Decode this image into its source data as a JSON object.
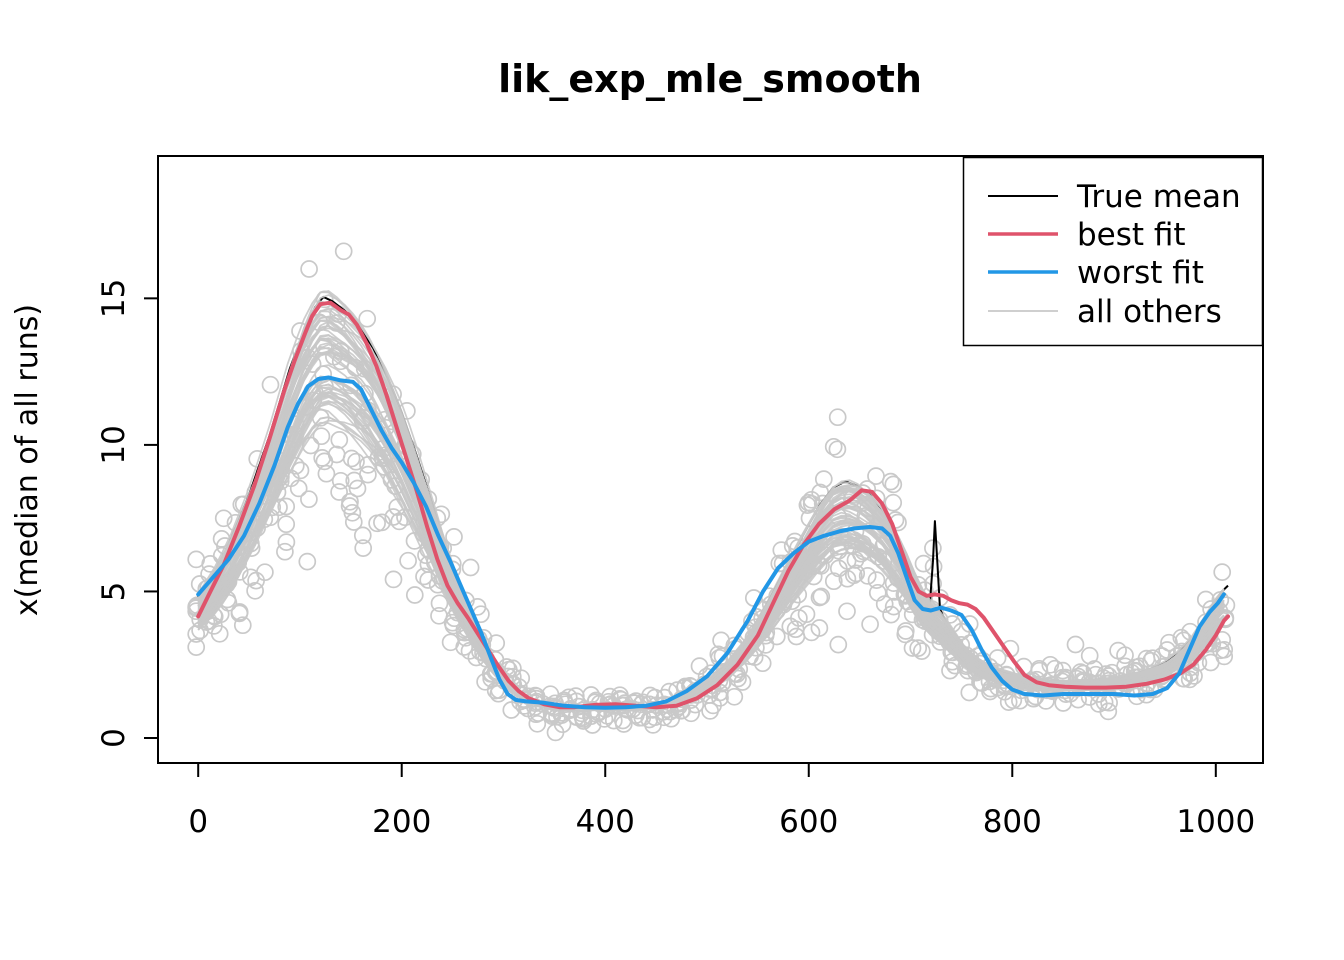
{
  "figure": {
    "background": "#FFFFFF"
  },
  "legend": {
    "position": "topright",
    "border_color": "#000000",
    "fill": "#FFFFFF"
  },
  "chart_data": {
    "type": "line",
    "title": "lik_exp_mle_smooth",
    "xlabel": "",
    "ylabel": "x(median of all runs)",
    "xlim": [
      -39,
      1046
    ],
    "ylim": [
      -0.85,
      19.85
    ],
    "x_ticks": [
      0,
      200,
      400,
      600,
      800,
      1000
    ],
    "y_ticks": [
      0,
      5,
      10,
      15
    ],
    "grid": false,
    "legend_position": "topright",
    "series": [
      {
        "name": "True mean",
        "color": "#000000",
        "width": 2,
        "points": [
          [
            0,
            4.8
          ],
          [
            15,
            5.6
          ],
          [
            30,
            6.6
          ],
          [
            50,
            8.3
          ],
          [
            70,
            10.3
          ],
          [
            90,
            12.6
          ],
          [
            105,
            14.0
          ],
          [
            115,
            14.7
          ],
          [
            123,
            15.05
          ],
          [
            132,
            14.9
          ],
          [
            145,
            14.55
          ],
          [
            158,
            14.05
          ],
          [
            172,
            13.3
          ],
          [
            186,
            12.3
          ],
          [
            200,
            11.1
          ],
          [
            214,
            9.7
          ],
          [
            228,
            8.2
          ],
          [
            242,
            6.7
          ],
          [
            256,
            5.3
          ],
          [
            270,
            4.1
          ],
          [
            284,
            3.1
          ],
          [
            298,
            2.3
          ],
          [
            312,
            1.7
          ],
          [
            326,
            1.3
          ],
          [
            342,
            1.1
          ],
          [
            360,
            1.0
          ],
          [
            380,
            0.98
          ],
          [
            400,
            0.98
          ],
          [
            420,
            1.0
          ],
          [
            440,
            1.05
          ],
          [
            460,
            1.18
          ],
          [
            480,
            1.45
          ],
          [
            500,
            1.9
          ],
          [
            520,
            2.55
          ],
          [
            540,
            3.45
          ],
          [
            558,
            4.5
          ],
          [
            576,
            5.7
          ],
          [
            594,
            6.9
          ],
          [
            610,
            7.9
          ],
          [
            624,
            8.55
          ],
          [
            636,
            8.75
          ],
          [
            648,
            8.6
          ],
          [
            660,
            8.3
          ],
          [
            672,
            7.8
          ],
          [
            684,
            7.1
          ],
          [
            694,
            6.4
          ],
          [
            702,
            5.7
          ],
          [
            710,
            5.1
          ],
          [
            716,
            4.7
          ],
          [
            719,
            4.6
          ],
          [
            722,
            6.0
          ],
          [
            724,
            7.4
          ],
          [
            726,
            6.2
          ],
          [
            729,
            4.4
          ],
          [
            734,
            4.0
          ],
          [
            742,
            3.6
          ],
          [
            752,
            3.1
          ],
          [
            764,
            2.7
          ],
          [
            778,
            2.4
          ],
          [
            794,
            2.2
          ],
          [
            812,
            2.05
          ],
          [
            832,
            1.95
          ],
          [
            852,
            1.92
          ],
          [
            872,
            1.95
          ],
          [
            892,
            2.0
          ],
          [
            912,
            2.1
          ],
          [
            932,
            2.3
          ],
          [
            950,
            2.55
          ],
          [
            964,
            2.9
          ],
          [
            977,
            3.4
          ],
          [
            988,
            4.0
          ],
          [
            998,
            4.6
          ],
          [
            1006,
            5.0
          ],
          [
            1012,
            5.2
          ]
        ]
      },
      {
        "name": "best fit",
        "color": "#DF536B",
        "width": 4,
        "points": [
          [
            0,
            4.15
          ],
          [
            12,
            5.0
          ],
          [
            25,
            5.9
          ],
          [
            40,
            7.2
          ],
          [
            55,
            8.6
          ],
          [
            70,
            10.2
          ],
          [
            85,
            11.9
          ],
          [
            95,
            12.9
          ],
          [
            105,
            13.8
          ],
          [
            112,
            14.4
          ],
          [
            120,
            14.8
          ],
          [
            130,
            14.85
          ],
          [
            140,
            14.6
          ],
          [
            148,
            14.45
          ],
          [
            156,
            14.1
          ],
          [
            165,
            13.5
          ],
          [
            175,
            12.7
          ],
          [
            185,
            11.7
          ],
          [
            195,
            10.6
          ],
          [
            205,
            9.5
          ],
          [
            215,
            8.4
          ],
          [
            225,
            7.2
          ],
          [
            235,
            6.1
          ],
          [
            245,
            5.2
          ],
          [
            255,
            4.6
          ],
          [
            265,
            4.1
          ],
          [
            275,
            3.55
          ],
          [
            285,
            3.0
          ],
          [
            295,
            2.45
          ],
          [
            305,
            1.95
          ],
          [
            315,
            1.6
          ],
          [
            325,
            1.35
          ],
          [
            340,
            1.15
          ],
          [
            355,
            1.05
          ],
          [
            370,
            1.05
          ],
          [
            390,
            1.13
          ],
          [
            410,
            1.15
          ],
          [
            430,
            1.1
          ],
          [
            450,
            1.05
          ],
          [
            470,
            1.1
          ],
          [
            490,
            1.35
          ],
          [
            510,
            1.8
          ],
          [
            530,
            2.5
          ],
          [
            550,
            3.5
          ],
          [
            565,
            4.6
          ],
          [
            580,
            5.7
          ],
          [
            595,
            6.6
          ],
          [
            610,
            7.3
          ],
          [
            625,
            7.8
          ],
          [
            640,
            8.1
          ],
          [
            652,
            8.45
          ],
          [
            662,
            8.4
          ],
          [
            672,
            8.0
          ],
          [
            682,
            7.3
          ],
          [
            692,
            6.3
          ],
          [
            700,
            5.5
          ],
          [
            708,
            5.0
          ],
          [
            716,
            4.85
          ],
          [
            724,
            4.9
          ],
          [
            732,
            4.85
          ],
          [
            740,
            4.7
          ],
          [
            748,
            4.6
          ],
          [
            756,
            4.55
          ],
          [
            764,
            4.4
          ],
          [
            772,
            4.1
          ],
          [
            782,
            3.6
          ],
          [
            792,
            3.1
          ],
          [
            802,
            2.6
          ],
          [
            812,
            2.15
          ],
          [
            824,
            1.9
          ],
          [
            836,
            1.8
          ],
          [
            852,
            1.75
          ],
          [
            872,
            1.72
          ],
          [
            892,
            1.72
          ],
          [
            912,
            1.75
          ],
          [
            932,
            1.85
          ],
          [
            950,
            2.0
          ],
          [
            965,
            2.2
          ],
          [
            978,
            2.5
          ],
          [
            990,
            3.0
          ],
          [
            1000,
            3.5
          ],
          [
            1008,
            4.0
          ],
          [
            1012,
            4.15
          ]
        ]
      },
      {
        "name": "worst fit",
        "color": "#2297E6",
        "width": 4,
        "points": [
          [
            0,
            4.9
          ],
          [
            15,
            5.5
          ],
          [
            30,
            6.1
          ],
          [
            45,
            6.9
          ],
          [
            60,
            8.0
          ],
          [
            75,
            9.3
          ],
          [
            88,
            10.6
          ],
          [
            98,
            11.4
          ],
          [
            108,
            12.0
          ],
          [
            118,
            12.25
          ],
          [
            128,
            12.3
          ],
          [
            140,
            12.2
          ],
          [
            152,
            12.15
          ],
          [
            160,
            11.9
          ],
          [
            170,
            11.2
          ],
          [
            180,
            10.5
          ],
          [
            190,
            9.9
          ],
          [
            200,
            9.4
          ],
          [
            212,
            8.7
          ],
          [
            224,
            7.9
          ],
          [
            236,
            6.9
          ],
          [
            248,
            6.0
          ],
          [
            258,
            5.2
          ],
          [
            268,
            4.4
          ],
          [
            278,
            3.6
          ],
          [
            288,
            2.7
          ],
          [
            296,
            2.0
          ],
          [
            304,
            1.5
          ],
          [
            312,
            1.3
          ],
          [
            322,
            1.25
          ],
          [
            340,
            1.2
          ],
          [
            360,
            1.1
          ],
          [
            380,
            1.05
          ],
          [
            400,
            1.03
          ],
          [
            420,
            1.05
          ],
          [
            440,
            1.1
          ],
          [
            460,
            1.25
          ],
          [
            480,
            1.6
          ],
          [
            500,
            2.1
          ],
          [
            520,
            2.9
          ],
          [
            540,
            4.0
          ],
          [
            555,
            5.0
          ],
          [
            570,
            5.8
          ],
          [
            585,
            6.3
          ],
          [
            600,
            6.7
          ],
          [
            615,
            6.9
          ],
          [
            630,
            7.05
          ],
          [
            645,
            7.15
          ],
          [
            660,
            7.2
          ],
          [
            672,
            7.15
          ],
          [
            680,
            6.9
          ],
          [
            688,
            6.3
          ],
          [
            696,
            5.5
          ],
          [
            704,
            4.7
          ],
          [
            712,
            4.4
          ],
          [
            720,
            4.35
          ],
          [
            730,
            4.45
          ],
          [
            740,
            4.35
          ],
          [
            750,
            4.2
          ],
          [
            760,
            3.7
          ],
          [
            770,
            3.0
          ],
          [
            780,
            2.4
          ],
          [
            790,
            1.95
          ],
          [
            800,
            1.65
          ],
          [
            812,
            1.5
          ],
          [
            830,
            1.45
          ],
          [
            850,
            1.5
          ],
          [
            875,
            1.5
          ],
          [
            900,
            1.5
          ],
          [
            920,
            1.45
          ],
          [
            938,
            1.5
          ],
          [
            952,
            1.7
          ],
          [
            964,
            2.2
          ],
          [
            974,
            3.0
          ],
          [
            984,
            3.8
          ],
          [
            994,
            4.3
          ],
          [
            1002,
            4.6
          ],
          [
            1008,
            4.9
          ]
        ]
      },
      {
        "name": "all others",
        "color": "#C8C8C8",
        "width": 1.7,
        "type": "ensemble",
        "runs": 60,
        "note": "band of smoothed curves from all other runs, drawn behind the highlighted fits"
      }
    ],
    "scatter": {
      "marker": "open-circle",
      "color": "#C9C9C9",
      "radius": 8,
      "approx_count": 730,
      "note": "raw run values scattered around the mean curves"
    }
  }
}
